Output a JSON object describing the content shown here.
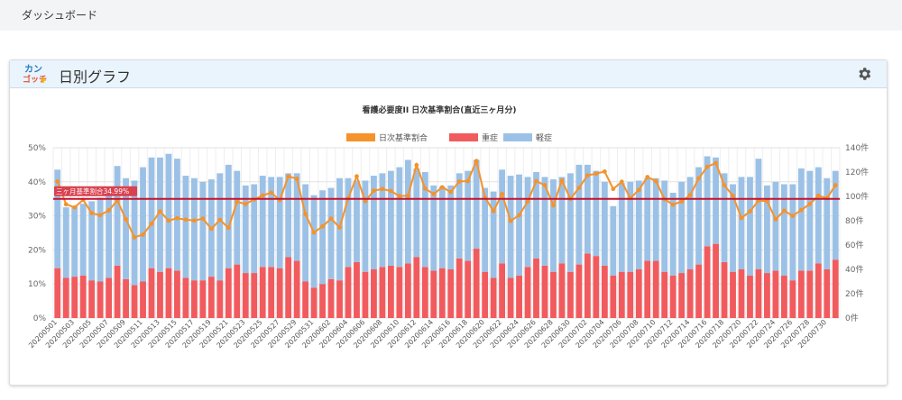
{
  "breadcrumb": "ダッシュボード",
  "card": {
    "title": "日別グラフ",
    "logo_text_top": "カン",
    "logo_text_bottom": "ゴッチ",
    "settings_icon": "gear-icon"
  },
  "colors": {
    "ratio": "#f5922a",
    "severe": "#f15b5e",
    "mild": "#9cc1e6",
    "threshold": "#c2132e",
    "header": "#e9f4fd"
  },
  "chart_data": {
    "type": "bar",
    "title": "看護必要度II 日次基準割合(直近三ヶ月分)",
    "legend": [
      "日次基準割合",
      "重症",
      "軽症"
    ],
    "legend_position": "top",
    "stacked": true,
    "left_axis": {
      "ticks": [
        "0%",
        "10%",
        "20%",
        "30%",
        "40%",
        "50%"
      ],
      "range": [
        0,
        50
      ]
    },
    "right_axis": {
      "ticks": [
        "0件",
        "20件",
        "40件",
        "60件",
        "80件",
        "100件",
        "120件",
        "140件"
      ],
      "range": [
        0,
        140
      ]
    },
    "threshold": {
      "label": "三ヶ月基準割合34.99%",
      "value": 34.99
    },
    "categories": [
      "20200501",
      "20200502",
      "20200503",
      "20200504",
      "20200505",
      "20200506",
      "20200507",
      "20200508",
      "20200509",
      "20200510",
      "20200511",
      "20200512",
      "20200513",
      "20200514",
      "20200515",
      "20200516",
      "20200517",
      "20200518",
      "20200519",
      "20200520",
      "20200521",
      "20200522",
      "20200523",
      "20200524",
      "20200525",
      "20200526",
      "20200527",
      "20200528",
      "20200529",
      "20200530",
      "20200531",
      "20200601",
      "20200602",
      "20200603",
      "20200604",
      "20200605",
      "20200606",
      "20200607",
      "20200608",
      "20200609",
      "20200610",
      "20200611",
      "20200612",
      "20200613",
      "20200614",
      "20200615",
      "20200616",
      "20200617",
      "20200618",
      "20200619",
      "20200620",
      "20200621",
      "20200622",
      "20200623",
      "20200624",
      "20200625",
      "20200626",
      "20200627",
      "20200628",
      "20200629",
      "20200630",
      "20200701",
      "20200702",
      "20200703",
      "20200704",
      "20200705",
      "20200706",
      "20200707",
      "20200708",
      "20200709",
      "20200710",
      "20200711",
      "20200712",
      "20200713",
      "20200714",
      "20200715",
      "20200716",
      "20200717",
      "20200718",
      "20200719",
      "20200720",
      "20200721",
      "20200722",
      "20200723",
      "20200724",
      "20200725",
      "20200726",
      "20200727",
      "20200728",
      "20200729",
      "20200730",
      "20200731"
    ],
    "x_tick_labels": [
      "20200501",
      "20200503",
      "20200505",
      "20200507",
      "20200509",
      "20200511",
      "20200513",
      "20200515",
      "20200517",
      "20200519",
      "20200521",
      "20200523",
      "20200525",
      "20200527",
      "20200529",
      "20200531",
      "20200602",
      "20200604",
      "20200606",
      "20200608",
      "20200610",
      "20200612",
      "20200614",
      "20200616",
      "20200618",
      "20200620",
      "20200622",
      "20200624",
      "20200626",
      "20200628",
      "20200630",
      "20200702",
      "20200704",
      "20200706",
      "20200708",
      "20200710",
      "20200712",
      "20200714",
      "20200716",
      "20200718",
      "20200720",
      "20200722",
      "20200724",
      "20200726",
      "20200728",
      "20200730"
    ],
    "series": [
      {
        "name": "重症",
        "axis": "right",
        "values": [
          41,
          33,
          34,
          35,
          31,
          30,
          33,
          43,
          32,
          27,
          30,
          41,
          38,
          41,
          39,
          33,
          31,
          31,
          34,
          31,
          41,
          44,
          37,
          37,
          42,
          42,
          41,
          50,
          47,
          30,
          25,
          28,
          32,
          31,
          42,
          46,
          38,
          40,
          42,
          43,
          42,
          45,
          50,
          42,
          39,
          41,
          40,
          49,
          47,
          57,
          38,
          33,
          45,
          33,
          35,
          42,
          49,
          43,
          38,
          45,
          38,
          44,
          53,
          51,
          43,
          35,
          38,
          38,
          40,
          47,
          47,
          38,
          35,
          37,
          40,
          44,
          59,
          61,
          46,
          38,
          40,
          35,
          40,
          37,
          39,
          35,
          31,
          39,
          39,
          45,
          40,
          48
        ]
      },
      {
        "name": "軽症",
        "axis": "right",
        "values": [
          81,
          58,
          58,
          59,
          65,
          69,
          68,
          82,
          83,
          86,
          94,
          91,
          94,
          94,
          92,
          84,
          84,
          81,
          80,
          88,
          85,
          77,
          72,
          73,
          75,
          74,
          75,
          69,
          72,
          80,
          76,
          77,
          75,
          84,
          73,
          67,
          75,
          77,
          77,
          78,
          82,
          85,
          73,
          78,
          70,
          67,
          69,
          70,
          74,
          73,
          69,
          71,
          77,
          84,
          83,
          74,
          71,
          73,
          76,
          71,
          81,
          82,
          73,
          70,
          69,
          57,
          73,
          74,
          73,
          68,
          68,
          75,
          68,
          75,
          76,
          80,
          74,
          71,
          73,
          72,
          76,
          81,
          91,
          72,
          73,
          75,
          79,
          84,
          82,
          79,
          75,
          73
        ]
      },
      {
        "name": "日次基準割合",
        "axis": "left",
        "type": "line",
        "values": [
          40.1,
          33.4,
          32.5,
          34.7,
          30.8,
          30.2,
          31.6,
          34.5,
          29.0,
          23.7,
          24.5,
          27.7,
          31.3,
          28.6,
          29.3,
          28.9,
          28.6,
          29.2,
          26.2,
          28.8,
          26.5,
          34.1,
          33.5,
          34.8,
          36.0,
          36.8,
          34.6,
          41.6,
          40.9,
          30.5,
          25.1,
          26.9,
          29.2,
          26.6,
          35.1,
          41.6,
          34.3,
          37.4,
          37.9,
          37.3,
          35.8,
          35.9,
          44.9,
          38.0,
          36.4,
          38.4,
          37.0,
          40.1,
          40.2,
          46.1,
          35.4,
          31.4,
          36.4,
          28.5,
          30.2,
          34.2,
          40.2,
          39.0,
          33.1,
          40.4,
          35.0,
          38.2,
          41.9,
          42.4,
          43.0,
          37.9,
          40.0,
          35.2,
          37.6,
          41.4,
          40.2,
          34.9,
          33.3,
          34.2,
          36.1,
          41.0,
          44.4,
          45.5,
          39.0,
          35.9,
          29.4,
          31.3,
          34.5,
          34.3,
          29.0,
          31.5,
          30.0,
          31.7,
          33.5,
          35.9,
          35.2,
          39.0
        ]
      }
    ]
  }
}
